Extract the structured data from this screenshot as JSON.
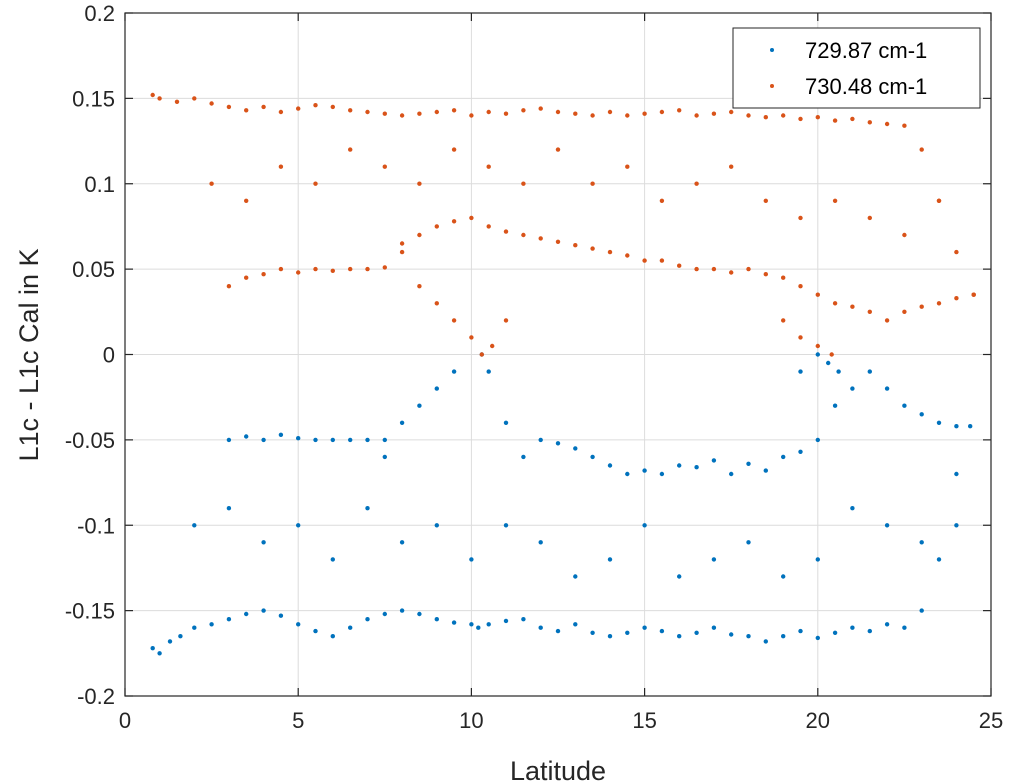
{
  "chart_data": {
    "type": "scatter",
    "title": "",
    "xlabel": "Latitude",
    "ylabel": "L1c - L1c Cal in K",
    "xlim": [
      0,
      25
    ],
    "ylim": [
      -0.2,
      0.2
    ],
    "xticks": [
      0,
      5,
      10,
      15,
      20,
      25
    ],
    "yticks": [
      -0.2,
      -0.15,
      -0.1,
      -0.05,
      0,
      0.05,
      0.1,
      0.15,
      0.2
    ],
    "xtick_labels": [
      "0",
      "5",
      "10",
      "15",
      "20",
      "25"
    ],
    "ytick_labels": [
      "-0.2",
      "-0.15",
      "-0.1",
      "-0.05",
      "0",
      "0.05",
      "0.1",
      "0.15",
      "0.2"
    ],
    "grid": true,
    "legend_position": "top-right",
    "series": [
      {
        "name": "729.87 cm-1",
        "color": "#0072BD",
        "x": [
          0.8,
          1.0,
          1.3,
          1.6,
          2.0,
          2.5,
          3.0,
          3.5,
          4.0,
          4.5,
          5.0,
          5.5,
          6.0,
          6.5,
          7.0,
          7.5,
          8.0,
          8.5,
          9.0,
          9.5,
          10.0,
          10.2,
          10.5,
          11.0,
          11.5,
          12.0,
          12.5,
          13.0,
          13.5,
          14.0,
          14.5,
          15.0,
          15.5,
          16.0,
          16.5,
          17.0,
          17.5,
          18.0,
          18.5,
          19.0,
          19.5,
          20.0,
          20.5,
          21.0,
          21.5,
          22.0,
          22.5,
          23.0,
          23.5,
          24.0,
          24.4,
          3.0,
          3.5,
          4.0,
          4.5,
          5.0,
          5.5,
          6.0,
          6.5,
          7.0,
          7.5,
          12.0,
          12.5,
          13.0,
          13.5,
          14.0,
          14.5,
          15.0,
          15.5,
          16.0,
          16.5,
          17.0,
          17.5,
          18.0,
          18.5,
          19.0,
          19.5,
          20.0,
          20.5,
          21.0,
          21.5,
          22.0,
          22.5,
          23.0,
          23.5,
          24.0,
          2.0,
          3.0,
          4.0,
          5.0,
          6.0,
          7.0,
          8.0,
          9.0,
          10.0,
          11.0,
          12.0,
          13.0,
          14.0,
          15.0,
          16.0,
          17.0,
          18.0,
          19.0,
          20.0,
          21.0,
          22.0,
          23.0,
          24.0,
          7.5,
          8.0,
          8.5,
          9.0,
          9.5,
          10.3,
          10.5,
          11.0,
          11.5,
          19.5,
          20.0,
          20.3,
          20.6
        ],
        "y": [
          -0.172,
          -0.175,
          -0.168,
          -0.165,
          -0.16,
          -0.158,
          -0.155,
          -0.152,
          -0.15,
          -0.153,
          -0.158,
          -0.162,
          -0.165,
          -0.16,
          -0.155,
          -0.152,
          -0.15,
          -0.152,
          -0.155,
          -0.157,
          -0.158,
          -0.16,
          -0.158,
          -0.156,
          -0.155,
          -0.16,
          -0.162,
          -0.158,
          -0.163,
          -0.165,
          -0.163,
          -0.16,
          -0.162,
          -0.165,
          -0.163,
          -0.16,
          -0.164,
          -0.165,
          -0.168,
          -0.165,
          -0.162,
          -0.166,
          -0.163,
          -0.16,
          -0.162,
          -0.158,
          -0.16,
          -0.15,
          -0.12,
          -0.07,
          -0.042,
          -0.05,
          -0.048,
          -0.05,
          -0.047,
          -0.049,
          -0.05,
          -0.05,
          -0.05,
          -0.05,
          -0.05,
          -0.05,
          -0.052,
          -0.055,
          -0.06,
          -0.065,
          -0.07,
          -0.068,
          -0.07,
          -0.065,
          -0.066,
          -0.062,
          -0.07,
          -0.064,
          -0.068,
          -0.06,
          -0.057,
          -0.05,
          -0.03,
          -0.02,
          -0.01,
          -0.02,
          -0.03,
          -0.035,
          -0.04,
          -0.042,
          -0.1,
          -0.09,
          -0.11,
          -0.1,
          -0.12,
          -0.09,
          -0.11,
          -0.1,
          -0.12,
          -0.1,
          -0.11,
          -0.13,
          -0.12,
          -0.1,
          -0.13,
          -0.12,
          -0.11,
          -0.13,
          -0.12,
          -0.09,
          -0.1,
          -0.11,
          -0.1,
          -0.06,
          -0.04,
          -0.03,
          -0.02,
          -0.01,
          0.0,
          -0.01,
          -0.04,
          -0.06,
          -0.01,
          0.0,
          -0.005,
          -0.01
        ]
      },
      {
        "name": "730.48 cm-1",
        "color": "#D95319",
        "x": [
          0.8,
          1.0,
          1.5,
          2.0,
          2.5,
          3.0,
          3.5,
          4.0,
          4.5,
          5.0,
          5.5,
          6.0,
          6.5,
          7.0,
          7.5,
          8.0,
          8.5,
          9.0,
          9.5,
          10.0,
          10.5,
          11.0,
          11.5,
          12.0,
          12.5,
          13.0,
          13.5,
          14.0,
          14.5,
          15.0,
          15.5,
          16.0,
          16.5,
          17.0,
          17.5,
          18.0,
          18.5,
          19.0,
          19.5,
          20.0,
          20.5,
          21.0,
          21.5,
          22.0,
          22.5,
          23.0,
          23.5,
          24.0,
          24.5,
          3.0,
          3.5,
          4.0,
          4.5,
          5.0,
          5.5,
          6.0,
          6.5,
          7.0,
          7.5,
          8.0,
          8.5,
          9.0,
          9.5,
          10.0,
          10.5,
          11.0,
          11.5,
          12.0,
          12.5,
          13.0,
          13.5,
          14.0,
          14.5,
          15.0,
          15.5,
          16.0,
          16.5,
          17.0,
          17.5,
          18.0,
          18.5,
          19.0,
          19.5,
          20.0,
          20.5,
          21.0,
          21.5,
          22.0,
          22.5,
          23.0,
          23.5,
          24.0,
          24.5,
          2.5,
          3.5,
          4.5,
          5.5,
          6.5,
          7.5,
          8.5,
          9.5,
          10.5,
          11.5,
          12.5,
          13.5,
          14.5,
          15.5,
          16.5,
          17.5,
          18.5,
          19.5,
          20.5,
          21.5,
          22.5,
          23.5,
          8.0,
          8.5,
          9.0,
          9.5,
          10.0,
          10.3,
          10.6,
          11.0,
          19.0,
          19.5,
          20.0,
          20.4
        ],
        "y": [
          0.152,
          0.15,
          0.148,
          0.15,
          0.147,
          0.145,
          0.143,
          0.145,
          0.142,
          0.144,
          0.146,
          0.145,
          0.143,
          0.142,
          0.141,
          0.14,
          0.141,
          0.142,
          0.143,
          0.14,
          0.142,
          0.141,
          0.143,
          0.144,
          0.142,
          0.141,
          0.14,
          0.142,
          0.14,
          0.141,
          0.142,
          0.143,
          0.14,
          0.141,
          0.142,
          0.14,
          0.139,
          0.14,
          0.138,
          0.139,
          0.137,
          0.138,
          0.136,
          0.135,
          0.134,
          0.12,
          0.09,
          0.06,
          0.035,
          0.04,
          0.045,
          0.047,
          0.05,
          0.048,
          0.05,
          0.049,
          0.05,
          0.05,
          0.051,
          0.065,
          0.07,
          0.075,
          0.078,
          0.08,
          0.075,
          0.072,
          0.07,
          0.068,
          0.066,
          0.064,
          0.062,
          0.06,
          0.058,
          0.055,
          0.055,
          0.052,
          0.05,
          0.05,
          0.048,
          0.05,
          0.047,
          0.045,
          0.04,
          0.035,
          0.03,
          0.028,
          0.025,
          0.02,
          0.025,
          0.028,
          0.03,
          0.033,
          0.035,
          0.1,
          0.09,
          0.11,
          0.1,
          0.12,
          0.11,
          0.1,
          0.12,
          0.11,
          0.1,
          0.12,
          0.1,
          0.11,
          0.09,
          0.1,
          0.11,
          0.09,
          0.08,
          0.09,
          0.08,
          0.07,
          0.09,
          0.06,
          0.04,
          0.03,
          0.02,
          0.01,
          0.0,
          0.005,
          0.02,
          0.02,
          0.01,
          0.005,
          0.0
        ]
      }
    ]
  }
}
